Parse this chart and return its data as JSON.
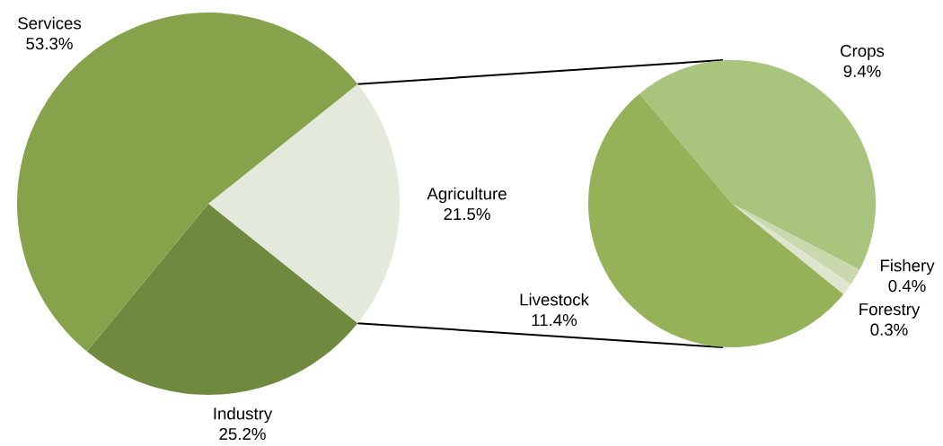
{
  "chart_data": [
    {
      "type": "pie",
      "categories": [
        "Agriculture",
        "Industry",
        "Services"
      ],
      "values": [
        21.5,
        25.2,
        53.3
      ],
      "value_labels": [
        "21.5%",
        "25.2%",
        "53.3%"
      ],
      "colors": [
        "#e4eadb",
        "#6f8a3e",
        "#86a24b"
      ]
    },
    {
      "type": "pie",
      "categories": [
        "Crops",
        "Fishery",
        "Forestry",
        "Livestock"
      ],
      "values": [
        9.4,
        0.4,
        0.3,
        11.4
      ],
      "value_labels": [
        "9.4%",
        "0.4%",
        "0.3%",
        "11.4%"
      ],
      "colors": [
        "#a9c47c",
        "#c9d8ad",
        "#dde6cd",
        "#95b259"
      ]
    }
  ]
}
